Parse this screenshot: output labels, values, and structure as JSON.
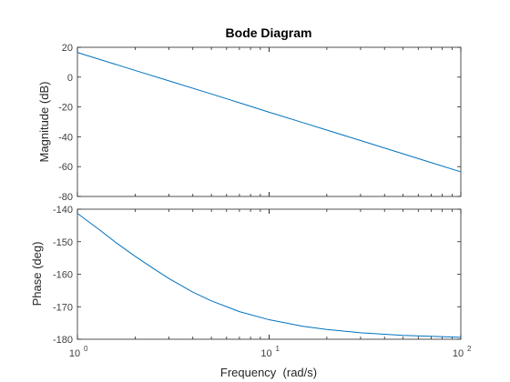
{
  "chart_data": {
    "type": "line",
    "title": "Bode Diagram",
    "xlabel": "Frequency  (rad/s)",
    "xscale": "log",
    "xlim": [
      1,
      100
    ],
    "x_ticks": [
      {
        "base": "10",
        "exp": "0",
        "value": 1
      },
      {
        "base": "10",
        "exp": "1",
        "value": 10
      },
      {
        "base": "10",
        "exp": "2",
        "value": 100
      }
    ],
    "line_color": "#0072BD",
    "panels": [
      {
        "name": "magnitude",
        "ylabel": "Magnitude (dB)",
        "ylim": [
          -80,
          20
        ],
        "yticks": [
          "20",
          "0",
          "-20",
          "-40",
          "-60",
          "-80"
        ],
        "ytick_values": [
          20,
          0,
          -20,
          -40,
          -60,
          -80
        ],
        "x": [
          1,
          1.5,
          2,
          3,
          5,
          7,
          10,
          15,
          20,
          30,
          50,
          70,
          100
        ],
        "y": [
          16.5,
          9.5,
          4.5,
          -2.5,
          -11.3,
          -17.2,
          -23.5,
          -30.5,
          -35.5,
          -42.5,
          -51.4,
          -57.3,
          -63.5
        ]
      },
      {
        "name": "phase",
        "ylabel": "Phase (deg)",
        "ylim": [
          -180,
          -140
        ],
        "yticks": [
          "-140",
          "-150",
          "-160",
          "-170",
          "-180"
        ],
        "ytick_values": [
          -140,
          -150,
          -160,
          -170,
          -180
        ],
        "x": [
          1,
          1.3,
          1.6,
          2,
          2.5,
          3,
          4,
          5,
          7,
          10,
          15,
          20,
          30,
          50,
          70,
          100
        ],
        "y": [
          -141.3,
          -146.3,
          -150.4,
          -154.5,
          -158.3,
          -161.3,
          -165.5,
          -168.2,
          -171.5,
          -174.0,
          -176.0,
          -177.0,
          -178.0,
          -178.8,
          -179.1,
          -179.4
        ]
      }
    ]
  }
}
